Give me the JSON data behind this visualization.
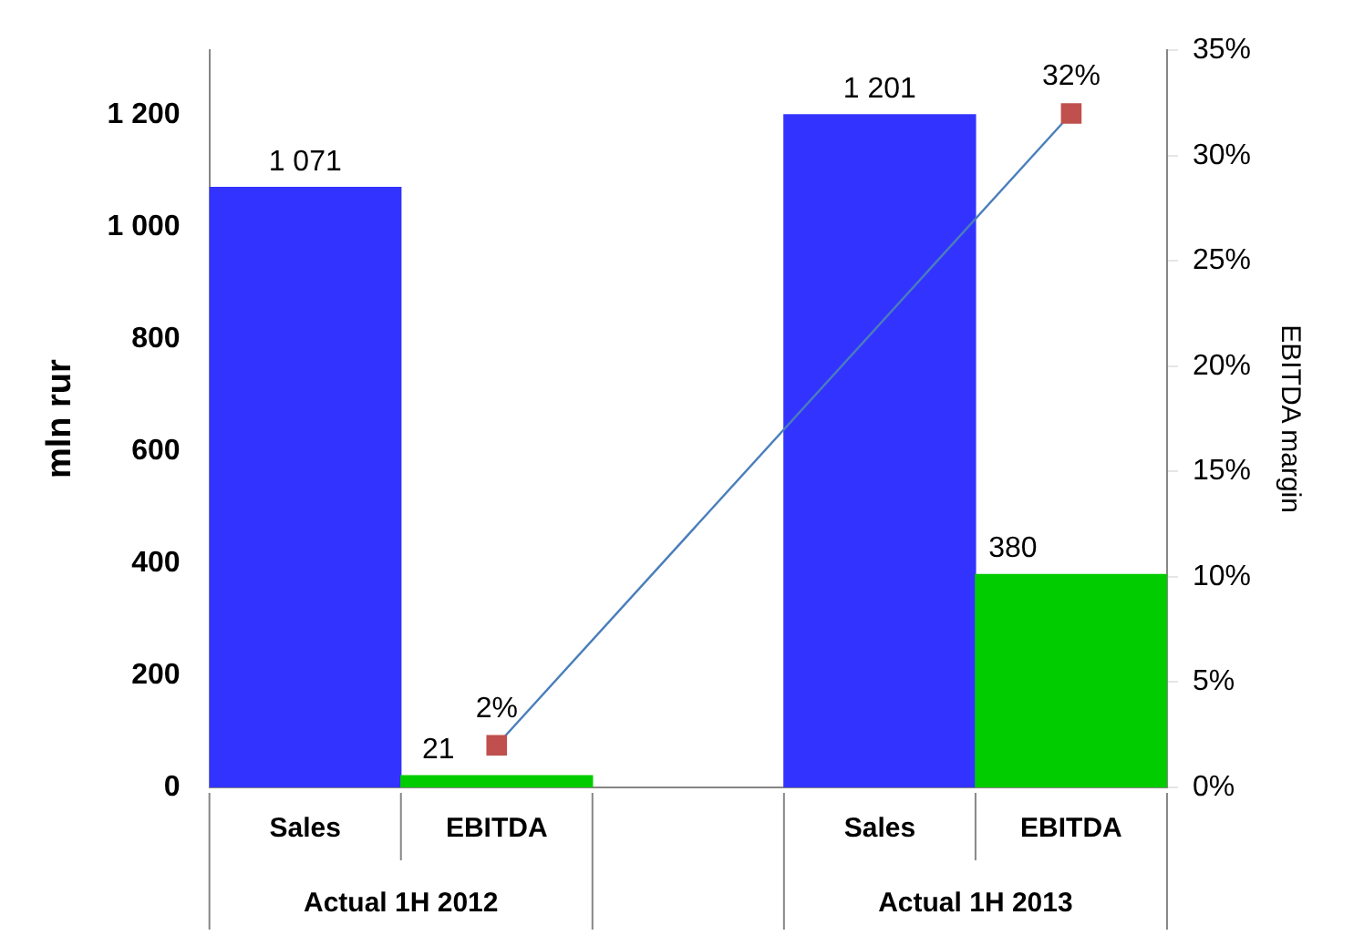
{
  "chart_data": {
    "type": "bar",
    "categories": [
      "Sales",
      "EBITDA",
      null,
      "Sales",
      "EBITDA"
    ],
    "series": [
      {
        "values": [
          1071,
          21,
          null,
          1201,
          380
        ],
        "colors": [
          null,
          "#00cc00",
          null,
          null,
          "#00cc00"
        ],
        "color": "#3333ff",
        "value_labels": [
          "1 071",
          "21",
          null,
          "1 201",
          "380"
        ]
      },
      {
        "type": "line",
        "axis": "y2",
        "values": [
          null,
          2,
          null,
          null,
          32
        ],
        "color": "#4a7ebb",
        "colors": [
          null,
          "#c0504d",
          null,
          null,
          "#c0504d"
        ],
        "marker": "square",
        "value_labels": [
          null,
          "2%",
          null,
          null,
          "32%"
        ]
      }
    ],
    "ylabel": "mln rur",
    "y2label": "EBITDA margin",
    "ylim": [
      0,
      1316
    ],
    "yticks": [
      0,
      200,
      400,
      600,
      800,
      {
        "value": 1000,
        "label": "1 000"
      },
      {
        "value": 1200,
        "label": "1 200"
      }
    ],
    "y2lim": [
      0,
      35
    ],
    "y2ticks": [
      {
        "value": 0,
        "label": "0%"
      },
      {
        "value": 5,
        "label": "5%"
      },
      {
        "value": 10,
        "label": "10%"
      },
      {
        "value": 15,
        "label": "15%"
      },
      {
        "value": 20,
        "label": "20%"
      },
      {
        "value": 25,
        "label": "25%"
      },
      {
        "value": 30,
        "label": "30%"
      },
      {
        "value": 35,
        "label": "35%"
      }
    ],
    "annotations": [
      "Actual 1H 2012",
      "Actual 1H 2013"
    ],
    "grid": false,
    "legend": false
  }
}
